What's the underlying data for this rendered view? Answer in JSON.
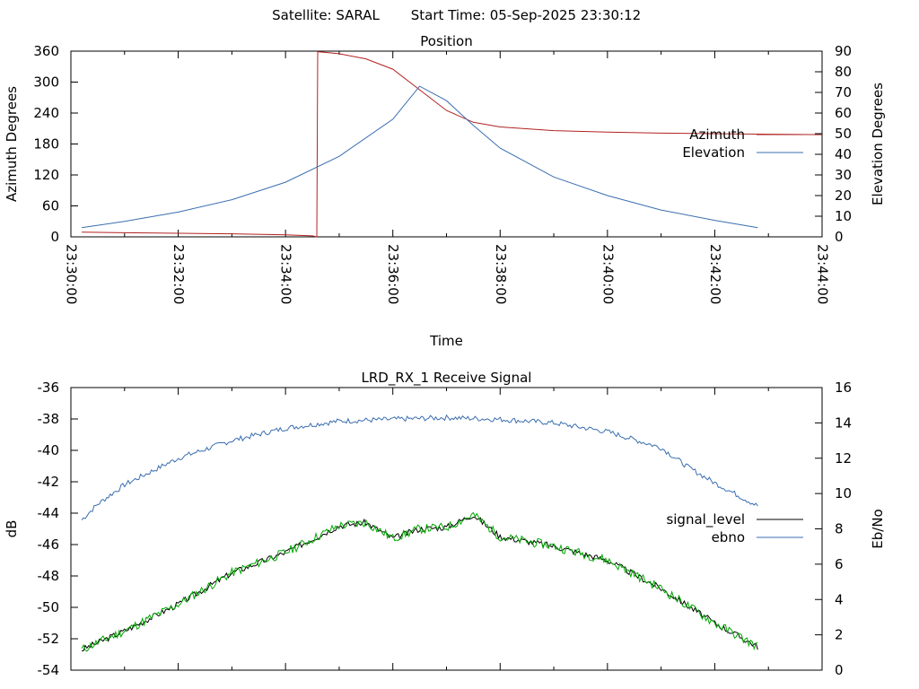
{
  "header": {
    "satellite": "Satellite: SARAL",
    "start_time": "Start Time: 05-Sep-2025 23:30:12"
  },
  "colors": {
    "azimuth": "#b22222",
    "elevation": "#3a6eb0",
    "signal_level": "#000000",
    "ebno": "#3a6eb0",
    "green_trace": "#00aa00"
  },
  "chart_data": [
    {
      "type": "line",
      "title": "Position",
      "xlabel": "Time",
      "ylabel": "Azimuth Degrees",
      "y2label": "Elevation Degrees",
      "x_ticks": [
        "23:30:00",
        "23:32:00",
        "23:34:00",
        "23:36:00",
        "23:38:00",
        "23:40:00",
        "23:42:00",
        "23:44:00"
      ],
      "xlim": [
        "23:30:00",
        "23:44:00"
      ],
      "ylim": [
        0,
        360
      ],
      "y_ticks": [
        0,
        60,
        120,
        180,
        240,
        300,
        360
      ],
      "y2lim": [
        0,
        90
      ],
      "y2_ticks": [
        0,
        10,
        20,
        30,
        40,
        50,
        60,
        70,
        80,
        90
      ],
      "legend_position": "right",
      "series": [
        {
          "name": "Azimuth",
          "axis": "y",
          "x": [
            "23:30:12",
            "23:31:00",
            "23:32:00",
            "23:33:00",
            "23:34:00",
            "23:34:30",
            "23:34:35",
            "23:34:36",
            "23:35:00",
            "23:35:30",
            "23:36:00",
            "23:36:30",
            "23:37:00",
            "23:37:30",
            "23:38:00",
            "23:39:00",
            "23:40:00",
            "23:41:00",
            "23:42:00",
            "23:43:00",
            "23:44:00"
          ],
          "values": [
            9,
            8,
            7,
            6,
            4,
            2,
            0,
            359,
            355,
            345,
            325,
            285,
            245,
            222,
            213,
            206,
            203,
            201,
            200,
            199,
            198
          ]
        },
        {
          "name": "Elevation",
          "axis": "y2",
          "x": [
            "23:30:12",
            "23:31:00",
            "23:32:00",
            "23:33:00",
            "23:34:00",
            "23:35:00",
            "23:36:00",
            "23:36:30",
            "23:37:00",
            "23:37:30",
            "23:38:00",
            "23:39:00",
            "23:40:00",
            "23:41:00",
            "23:42:00",
            "23:42:48"
          ],
          "values": [
            4.5,
            7.5,
            12,
            18,
            26.5,
            39,
            57,
            73,
            66,
            54,
            43,
            29,
            20,
            13,
            8,
            4.5
          ]
        }
      ]
    },
    {
      "type": "line",
      "title": "LRD_RX_1 Receive Signal",
      "ylabel": "dB",
      "y2label": "Eb/No",
      "xlim": [
        "23:30:00",
        "23:44:00"
      ],
      "ylim": [
        -54,
        -36
      ],
      "y_ticks": [
        -54,
        -52,
        -50,
        -48,
        -46,
        -44,
        -42,
        -40,
        -38,
        -36
      ],
      "y2lim": [
        0,
        16
      ],
      "y2_ticks": [
        0,
        2,
        4,
        6,
        8,
        10,
        12,
        14,
        16
      ],
      "legend_position": "right",
      "series": [
        {
          "name": "signal_level",
          "axis": "y",
          "x": [
            "23:30:12",
            "23:31:00",
            "23:32:00",
            "23:33:00",
            "23:34:00",
            "23:35:00",
            "23:35:30",
            "23:36:00",
            "23:36:30",
            "23:37:00",
            "23:37:30",
            "23:38:00",
            "23:39:00",
            "23:40:00",
            "23:41:00",
            "23:42:00",
            "23:42:48"
          ],
          "values": [
            -52.7,
            -51.5,
            -49.8,
            -47.8,
            -46.5,
            -44.8,
            -44.6,
            -45.6,
            -45.0,
            -44.9,
            -44.1,
            -45.5,
            -46.1,
            -47.0,
            -48.8,
            -51.0,
            -52.5
          ]
        },
        {
          "name": "ebno",
          "axis": "y2",
          "x": [
            "23:30:12",
            "23:30:30",
            "23:31:00",
            "23:32:00",
            "23:33:00",
            "23:34:00",
            "23:35:00",
            "23:36:00",
            "23:37:00",
            "23:38:00",
            "23:39:00",
            "23:40:00",
            "23:41:00",
            "23:41:30",
            "23:42:00",
            "23:42:48"
          ],
          "values": [
            8.5,
            9.4,
            10.5,
            12.0,
            13.0,
            13.7,
            14.1,
            14.2,
            14.3,
            14.2,
            14.0,
            13.5,
            12.6,
            11.5,
            10.6,
            9.3
          ]
        }
      ]
    }
  ]
}
